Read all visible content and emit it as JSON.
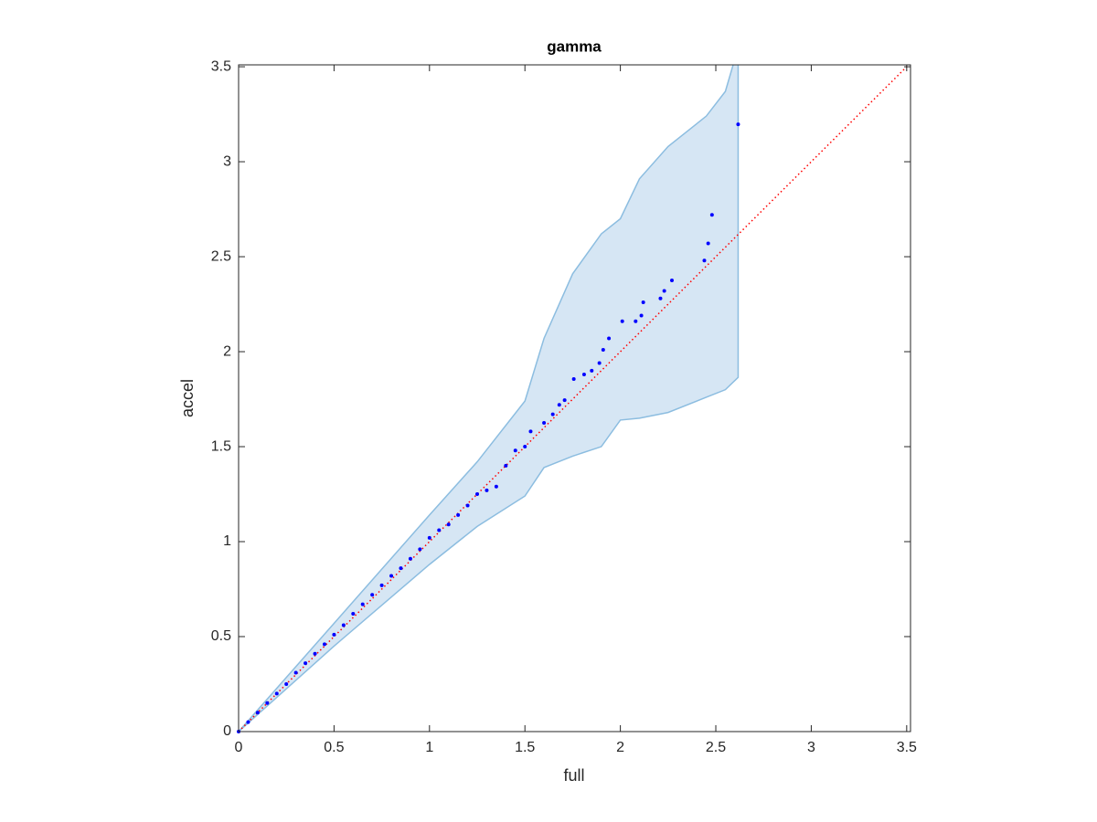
{
  "chart_data": {
    "type": "scatter",
    "title": "gamma",
    "xlabel": "full",
    "ylabel": "accel",
    "xlim": [
      0,
      3.52
    ],
    "ylim": [
      0,
      3.51
    ],
    "xticks": [
      0,
      0.5,
      1,
      1.5,
      2,
      2.5,
      3,
      3.5
    ],
    "yticks": [
      0,
      0.5,
      1,
      1.5,
      2,
      2.5,
      3,
      3.5
    ],
    "series": [
      {
        "color": "#0000ff",
        "x": [
          0,
          0.05,
          0.1,
          0.15,
          0.2,
          0.25,
          0.3,
          0.35,
          0.4,
          0.45,
          0.5,
          0.55,
          0.6,
          0.65,
          0.7,
          0.75,
          0.8,
          0.85,
          0.9,
          0.95,
          1.0,
          1.05,
          1.1,
          1.15,
          1.2,
          1.25,
          1.3,
          1.35,
          1.4,
          1.45,
          1.5,
          1.53,
          1.6,
          1.646,
          1.68,
          1.708,
          1.756,
          1.81,
          1.85,
          1.89,
          1.91,
          1.94,
          2.01,
          2.08,
          2.11,
          2.12,
          2.21,
          2.23,
          2.27,
          2.44,
          2.46,
          2.48,
          2.617
        ],
        "values": [
          0,
          0.05,
          0.1,
          0.15,
          0.2,
          0.25,
          0.31,
          0.36,
          0.41,
          0.46,
          0.51,
          0.56,
          0.62,
          0.67,
          0.72,
          0.77,
          0.82,
          0.86,
          0.91,
          0.96,
          1.02,
          1.06,
          1.09,
          1.14,
          1.19,
          1.25,
          1.27,
          1.29,
          1.4,
          1.48,
          1.5,
          1.58,
          1.625,
          1.67,
          1.72,
          1.745,
          1.856,
          1.88,
          1.9,
          1.94,
          2.01,
          2.07,
          2.16,
          2.16,
          2.19,
          2.26,
          2.28,
          2.32,
          2.375,
          2.48,
          2.57,
          2.72,
          3.197
        ]
      }
    ],
    "band": {
      "color": "#d6e6f4",
      "edge_color": "#8cbde0",
      "x": [
        0,
        0.5,
        1,
        1.25,
        1.5,
        1.6,
        1.75,
        1.9,
        2,
        2.1,
        2.25,
        2.45,
        2.55,
        2.617
      ],
      "upper": [
        0,
        0.57,
        1.14,
        1.42,
        1.74,
        2.07,
        2.41,
        2.62,
        2.7,
        2.91,
        3.08,
        3.24,
        3.37,
        3.6
      ],
      "lower": [
        0,
        0.45,
        0.88,
        1.08,
        1.24,
        1.39,
        1.45,
        1.5,
        1.64,
        1.65,
        1.68,
        1.76,
        1.8,
        1.865
      ]
    },
    "reference_line": {
      "color": "#ff0000",
      "x": [
        0,
        3.52
      ],
      "values": [
        0,
        3.52
      ]
    }
  }
}
